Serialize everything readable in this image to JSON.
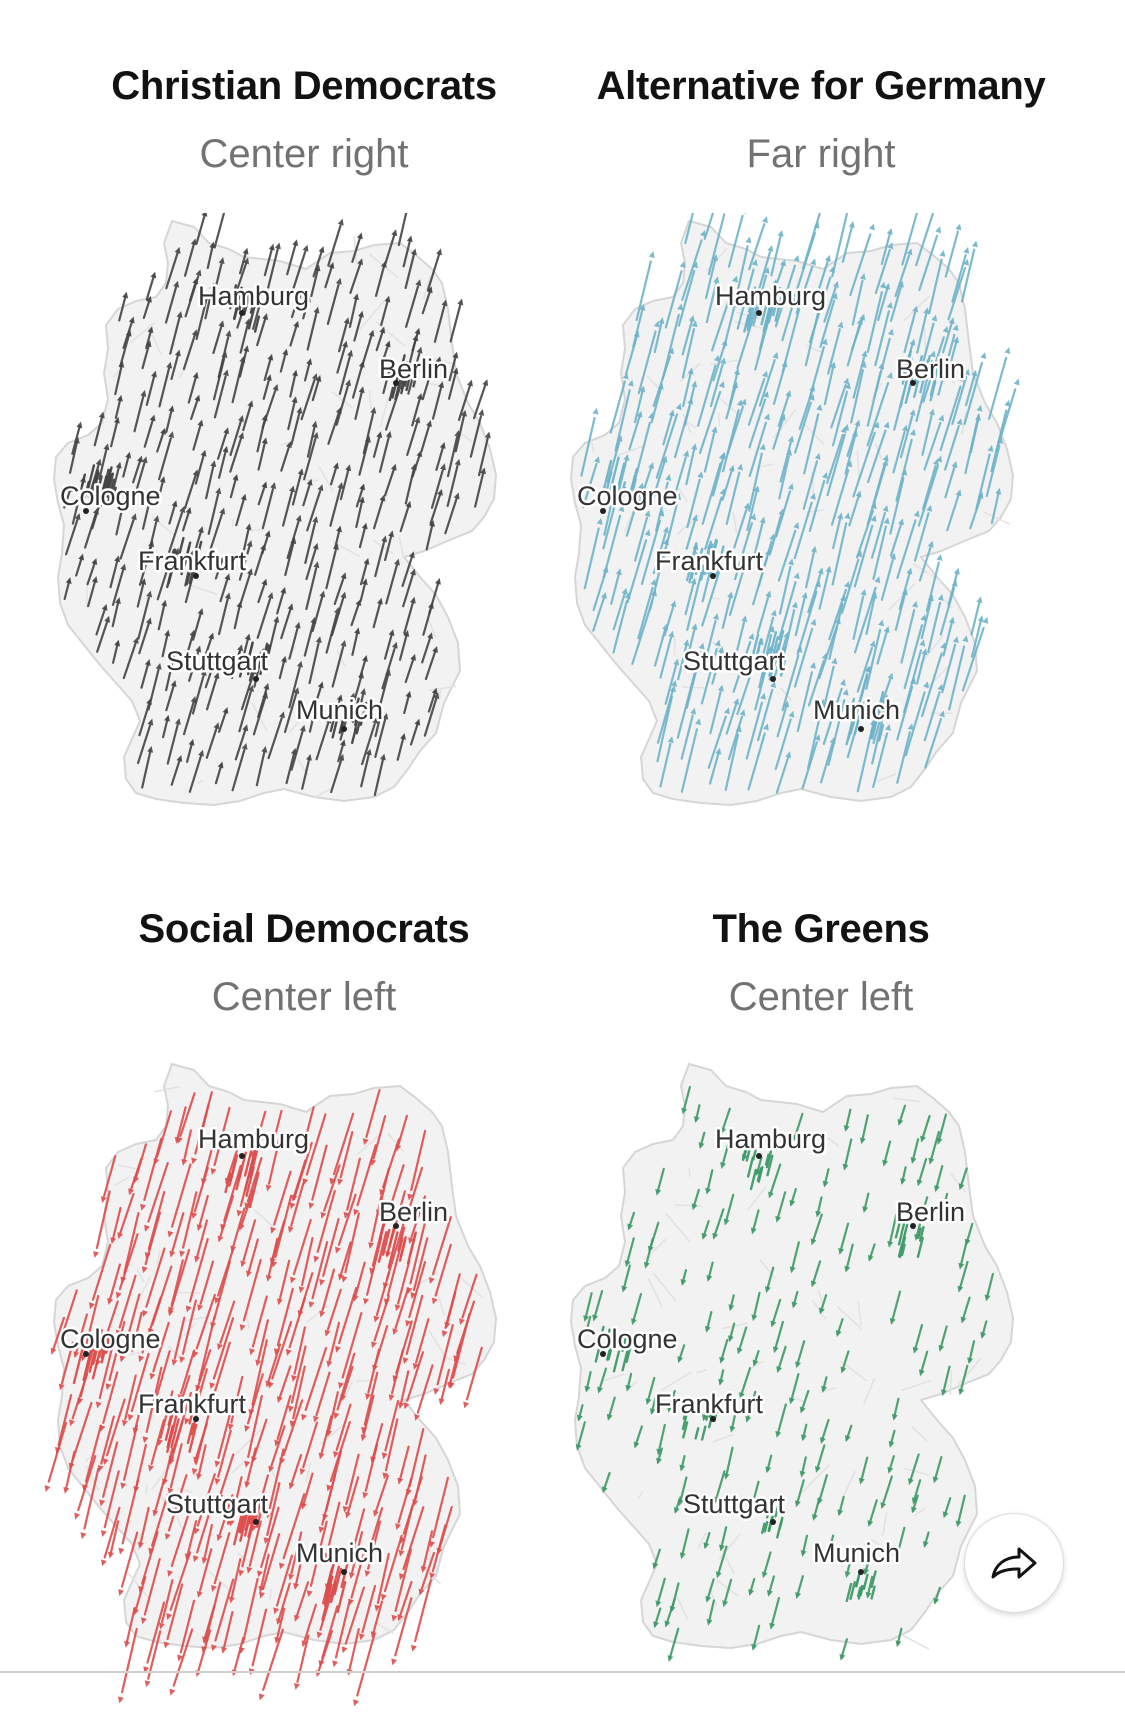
{
  "panels": [
    {
      "title": "Christian Democrats",
      "subtitle": "Center right",
      "color": "#444444",
      "direction": "up",
      "strength": 0.55
    },
    {
      "title": "Alternative for Germany",
      "subtitle": "Far right",
      "color": "#6fb3c9",
      "direction": "up",
      "strength": 1.0
    },
    {
      "title": "Social Democrats",
      "subtitle": "Center left",
      "color": "#dd4c4c",
      "direction": "down",
      "strength": 1.0
    },
    {
      "title": "The Greens",
      "subtitle": "Center left",
      "color": "#3f9a68",
      "direction": "down",
      "strength": 0.32
    }
  ],
  "cities": [
    "Hamburg",
    "Berlin",
    "Cologne",
    "Frankfurt",
    "Stuttgart",
    "Munich"
  ],
  "share": {
    "icon": "share-arrow-icon"
  }
}
